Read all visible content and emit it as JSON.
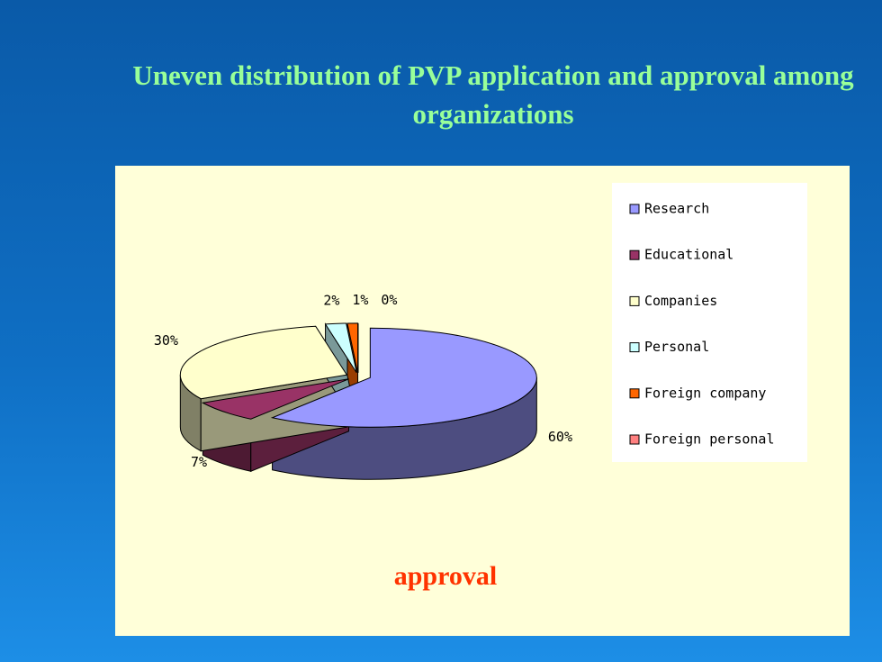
{
  "chart_data": {
    "type": "pie",
    "title": "Uneven distribution of PVP application and approval among organizations",
    "caption": "approval",
    "categories": [
      "Research",
      "Educational",
      "Companies",
      "Personal",
      "Foreign company",
      "Foreign personal"
    ],
    "values": [
      60,
      7,
      30,
      2,
      1,
      0
    ],
    "value_labels": [
      "60%",
      "7%",
      "30%",
      "2%",
      "1%",
      "0%"
    ],
    "colors": [
      "#9999ff",
      "#993366",
      "#ffffcc",
      "#ccffff",
      "#ff6600",
      "#ff8080"
    ],
    "legend": "right"
  }
}
